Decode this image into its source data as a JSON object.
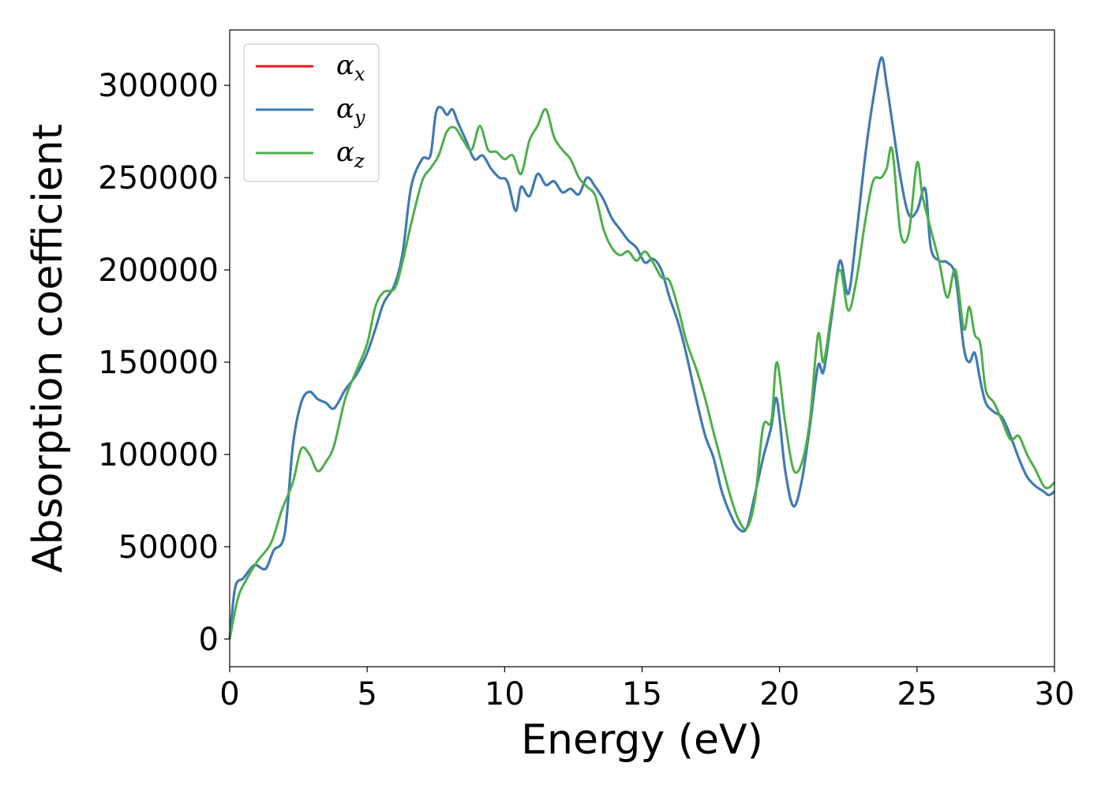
{
  "chart_data": {
    "type": "line",
    "title": "",
    "xlabel": "Energy (eV)",
    "ylabel": "Absorption coefficient",
    "xlim": [
      0,
      30
    ],
    "ylim": [
      -15000,
      330000
    ],
    "xticks": [
      0,
      5,
      10,
      15,
      20,
      25,
      30
    ],
    "xtick_labels": [
      "0",
      "5",
      "10",
      "15",
      "20",
      "25",
      "30"
    ],
    "yticks": [
      0,
      50000,
      100000,
      150000,
      200000,
      250000,
      300000
    ],
    "ytick_labels": [
      "0",
      "50000",
      "100000",
      "150000",
      "200000",
      "250000",
      "300000"
    ],
    "grid": false,
    "legend_position": "top-left",
    "series": [
      {
        "name": "αx",
        "name_base": "α",
        "name_sub": "x",
        "color": "#e41a1c",
        "x": [
          0,
          0.2,
          0.5,
          0.9,
          1.3,
          1.6,
          2.0,
          2.3,
          2.6,
          2.9,
          3.2,
          3.5,
          3.8,
          4.2,
          4.6,
          5.0,
          5.3,
          5.6,
          6.0,
          6.3,
          6.6,
          7.0,
          7.3,
          7.5,
          7.7,
          7.9,
          8.1,
          8.3,
          8.6,
          8.9,
          9.2,
          9.5,
          9.8,
          10.1,
          10.4,
          10.6,
          10.9,
          11.2,
          11.5,
          11.8,
          12.1,
          12.4,
          12.7,
          13.0,
          13.3,
          13.6,
          13.9,
          14.2,
          14.5,
          14.8,
          15.1,
          15.4,
          15.7,
          16.0,
          16.3,
          16.6,
          17.0,
          17.3,
          17.6,
          17.9,
          18.2,
          18.5,
          18.8,
          19.1,
          19.4,
          19.7,
          19.9,
          20.2,
          20.5,
          20.8,
          21.1,
          21.4,
          21.6,
          21.9,
          22.2,
          22.5,
          22.8,
          23.1,
          23.4,
          23.7,
          23.9,
          24.1,
          24.4,
          24.7,
          25.0,
          25.3,
          25.5,
          25.8,
          26.1,
          26.4,
          26.7,
          26.9,
          27.1,
          27.3,
          27.5,
          27.8,
          28.1,
          28.4,
          28.7,
          29.0,
          29.3,
          29.6,
          29.8,
          30.0
        ],
        "y": [
          0,
          28000,
          33000,
          40000,
          38000,
          48000,
          57000,
          105000,
          128000,
          134000,
          130000,
          128000,
          125000,
          135000,
          143000,
          155000,
          168000,
          182000,
          192000,
          210000,
          245000,
          260000,
          262000,
          285000,
          288000,
          284000,
          287000,
          280000,
          270000,
          260000,
          262000,
          255000,
          250000,
          248000,
          232000,
          245000,
          240000,
          252000,
          246000,
          248000,
          242000,
          244000,
          241000,
          250000,
          245000,
          238000,
          228000,
          222000,
          216000,
          212000,
          204000,
          206000,
          200000,
          185000,
          172000,
          155000,
          128000,
          110000,
          98000,
          80000,
          68000,
          60000,
          60000,
          78000,
          98000,
          115000,
          130000,
          92000,
          72000,
          85000,
          115000,
          148000,
          145000,
          175000,
          205000,
          187000,
          220000,
          260000,
          292000,
          315000,
          300000,
          280000,
          250000,
          230000,
          232000,
          244000,
          212000,
          205000,
          204000,
          196000,
          158000,
          150000,
          155000,
          140000,
          128000,
          123000,
          120000,
          110000,
          98000,
          88000,
          83000,
          80000,
          78000,
          80000
        ]
      },
      {
        "name": "αy",
        "name_base": "α",
        "name_sub": "y",
        "color": "#377eb8",
        "x": [
          0,
          0.2,
          0.5,
          0.9,
          1.3,
          1.6,
          2.0,
          2.3,
          2.6,
          2.9,
          3.2,
          3.5,
          3.8,
          4.2,
          4.6,
          5.0,
          5.3,
          5.6,
          6.0,
          6.3,
          6.6,
          7.0,
          7.3,
          7.5,
          7.7,
          7.9,
          8.1,
          8.3,
          8.6,
          8.9,
          9.2,
          9.5,
          9.8,
          10.1,
          10.4,
          10.6,
          10.9,
          11.2,
          11.5,
          11.8,
          12.1,
          12.4,
          12.7,
          13.0,
          13.3,
          13.6,
          13.9,
          14.2,
          14.5,
          14.8,
          15.1,
          15.4,
          15.7,
          16.0,
          16.3,
          16.6,
          17.0,
          17.3,
          17.6,
          17.9,
          18.2,
          18.5,
          18.8,
          19.1,
          19.4,
          19.7,
          19.9,
          20.2,
          20.5,
          20.8,
          21.1,
          21.4,
          21.6,
          21.9,
          22.2,
          22.5,
          22.8,
          23.1,
          23.4,
          23.7,
          23.9,
          24.1,
          24.4,
          24.7,
          25.0,
          25.3,
          25.5,
          25.8,
          26.1,
          26.4,
          26.7,
          26.9,
          27.1,
          27.3,
          27.5,
          27.8,
          28.1,
          28.4,
          28.7,
          29.0,
          29.3,
          29.6,
          29.8,
          30.0
        ],
        "y": [
          0,
          28000,
          33000,
          40000,
          38000,
          48000,
          57000,
          105000,
          128000,
          134000,
          130000,
          128000,
          125000,
          135000,
          143000,
          155000,
          168000,
          182000,
          192000,
          210000,
          245000,
          260000,
          262000,
          285000,
          288000,
          284000,
          287000,
          280000,
          270000,
          260000,
          262000,
          255000,
          250000,
          248000,
          232000,
          245000,
          240000,
          252000,
          246000,
          248000,
          242000,
          244000,
          241000,
          250000,
          245000,
          238000,
          228000,
          222000,
          216000,
          212000,
          204000,
          206000,
          200000,
          185000,
          172000,
          155000,
          128000,
          110000,
          98000,
          80000,
          68000,
          60000,
          60000,
          78000,
          98000,
          115000,
          130000,
          92000,
          72000,
          85000,
          115000,
          148000,
          145000,
          175000,
          205000,
          187000,
          220000,
          260000,
          292000,
          315000,
          300000,
          280000,
          250000,
          230000,
          232000,
          244000,
          212000,
          205000,
          204000,
          196000,
          158000,
          150000,
          155000,
          140000,
          128000,
          123000,
          120000,
          110000,
          98000,
          88000,
          83000,
          80000,
          78000,
          80000
        ]
      },
      {
        "name": "αz",
        "name_base": "α",
        "name_sub": "z",
        "color": "#4daf4a",
        "x": [
          0,
          0.3,
          0.6,
          1.0,
          1.5,
          1.9,
          2.3,
          2.6,
          2.9,
          3.2,
          3.5,
          3.8,
          4.2,
          4.6,
          5.0,
          5.3,
          5.6,
          6.0,
          6.3,
          6.6,
          7.0,
          7.3,
          7.6,
          7.9,
          8.2,
          8.5,
          8.8,
          9.1,
          9.4,
          9.7,
          10.0,
          10.3,
          10.6,
          10.9,
          11.2,
          11.5,
          11.8,
          12.1,
          12.4,
          12.7,
          13.0,
          13.3,
          13.6,
          13.9,
          14.2,
          14.5,
          14.8,
          15.1,
          15.4,
          15.7,
          16.0,
          16.3,
          16.6,
          17.0,
          17.3,
          17.6,
          17.9,
          18.2,
          18.5,
          18.8,
          19.1,
          19.4,
          19.7,
          19.9,
          20.2,
          20.5,
          20.8,
          21.1,
          21.4,
          21.6,
          21.9,
          22.2,
          22.5,
          22.8,
          23.1,
          23.4,
          23.7,
          23.9,
          24.1,
          24.4,
          24.7,
          25.0,
          25.2,
          25.5,
          25.8,
          26.1,
          26.4,
          26.7,
          26.9,
          27.1,
          27.3,
          27.5,
          27.8,
          28.1,
          28.4,
          28.7,
          29.0,
          29.3,
          29.6,
          29.8,
          30.0
        ],
        "y": [
          0,
          22000,
          32000,
          42000,
          52000,
          70000,
          85000,
          103000,
          100000,
          91000,
          96000,
          105000,
          130000,
          145000,
          160000,
          180000,
          188000,
          190000,
          205000,
          225000,
          248000,
          255000,
          262000,
          275000,
          277000,
          270000,
          265000,
          278000,
          265000,
          264000,
          260000,
          262000,
          252000,
          270000,
          278000,
          287000,
          272000,
          265000,
          260000,
          250000,
          245000,
          240000,
          222000,
          212000,
          208000,
          210000,
          205000,
          210000,
          204000,
          196000,
          194000,
          180000,
          162000,
          145000,
          130000,
          112000,
          95000,
          78000,
          65000,
          60000,
          75000,
          115000,
          118000,
          150000,
          118000,
          92000,
          95000,
          118000,
          165000,
          150000,
          178000,
          200000,
          178000,
          195000,
          225000,
          248000,
          250000,
          255000,
          265000,
          220000,
          220000,
          258000,
          240000,
          222000,
          205000,
          185000,
          200000,
          168000,
          180000,
          165000,
          160000,
          135000,
          128000,
          118000,
          108000,
          110000,
          100000,
          92000,
          83000,
          82000,
          85000
        ]
      }
    ]
  }
}
